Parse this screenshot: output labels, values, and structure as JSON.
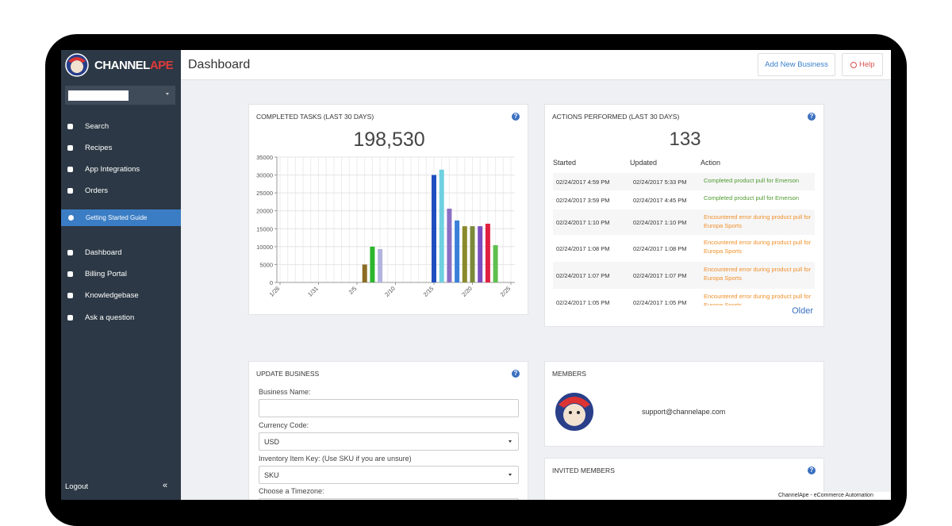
{
  "sidebar": {
    "brand": [
      "CHANNEL",
      "APE"
    ],
    "nav": [
      "Search",
      "Recipes",
      "App Integrations",
      "Orders"
    ],
    "guide": "Getting Started Guide",
    "nav2": [
      "Dashboard",
      "Billing Portal",
      "Knowledgebase",
      "Ask a question"
    ],
    "logout": "Logout",
    "collapse": "«"
  },
  "header": {
    "title": "Dashboard",
    "add_button": "Add New Business",
    "help_button": "Help"
  },
  "help_icon": "?",
  "tasks": {
    "title": "COMPLETED TASKS (LAST 30 DAYS)",
    "total": "198,530",
    "chart": {
      "type": "bar",
      "categories": [
        "1/26",
        null,
        null,
        null,
        null,
        "1/31",
        null,
        null,
        null,
        null,
        "2/5",
        null,
        null,
        null,
        null,
        "2/10",
        null,
        null,
        null,
        null,
        "2/15",
        null,
        null,
        null,
        null,
        "2/20",
        null,
        null,
        null,
        null,
        "2/25"
      ],
      "values": [
        0,
        0,
        0,
        0,
        0,
        0,
        0,
        0,
        0,
        0,
        0,
        5000,
        10000,
        9300,
        0,
        0,
        0,
        0,
        0,
        0,
        30000,
        31500,
        20600,
        17300,
        15700,
        15700,
        15700,
        16400,
        10400,
        0,
        0
      ],
      "colors": [
        null,
        null,
        null,
        null,
        null,
        null,
        null,
        null,
        null,
        null,
        null,
        "#8b6d23",
        "#2db52d",
        "#b3b3e0",
        null,
        null,
        null,
        null,
        null,
        null,
        "#1f4fbf",
        "#6fd0e0",
        "#8a6fc6",
        "#3a7fd8",
        "#8a8a2a",
        "#7a8a3a",
        "#7a4fc0",
        "#e02040",
        "#5fbf4f",
        null,
        null
      ],
      "ylim": [
        0,
        35000
      ],
      "yticks": [
        0,
        5000,
        10000,
        15000,
        20000,
        25000,
        30000,
        35000
      ],
      "grid": true
    }
  },
  "actions": {
    "title": "ACTIONS PERFORMED (LAST 30 DAYS)",
    "count": "133",
    "columns": [
      "Started",
      "Updated",
      "Action"
    ],
    "rows": [
      [
        "02/24/2017 4:59 PM",
        "02/24/2017 5:33 PM",
        "Completed product pull for Emerson"
      ],
      [
        "02/24/2017 3:59 PM",
        "02/24/2017 4:45 PM",
        "Completed product pull for Emerson"
      ],
      [
        "02/24/2017 1:10 PM",
        "02/24/2017 1:10 PM",
        "Encountered error during product pull for Europa Sports"
      ],
      [
        "02/24/2017 1:08 PM",
        "02/24/2017 1:08 PM",
        "Encountered error during product pull for Europa Sports"
      ],
      [
        "02/24/2017 1:07 PM",
        "02/24/2017 1:07 PM",
        "Encountered error during product pull for Europa Sports"
      ],
      [
        "02/24/2017 1:05 PM",
        "02/24/2017 1:05 PM",
        "Encountered error during product pull for Europa Sports"
      ]
    ],
    "row_colors": [
      "#4e9a2e",
      "#4e9a2e",
      "#f0902a",
      "#f0902a",
      "#f0902a",
      "#f0902a"
    ],
    "older": "Older"
  },
  "update": {
    "title": "UPDATE BUSINESS",
    "fields": [
      {
        "label": "Business Name:"
      },
      {
        "label": "Currency Code:",
        "value": "USD"
      },
      {
        "label": "Inventory Item Key: (Use SKU if you are unsure)",
        "value": "SKU"
      },
      {
        "label": "Choose a Timezone:"
      }
    ]
  },
  "members": {
    "title": "MEMBERS",
    "email": "support@channelape.com"
  },
  "invited": {
    "title": "INVITED MEMBERS"
  },
  "footer": "ChannelApe - eCommerce Automation"
}
